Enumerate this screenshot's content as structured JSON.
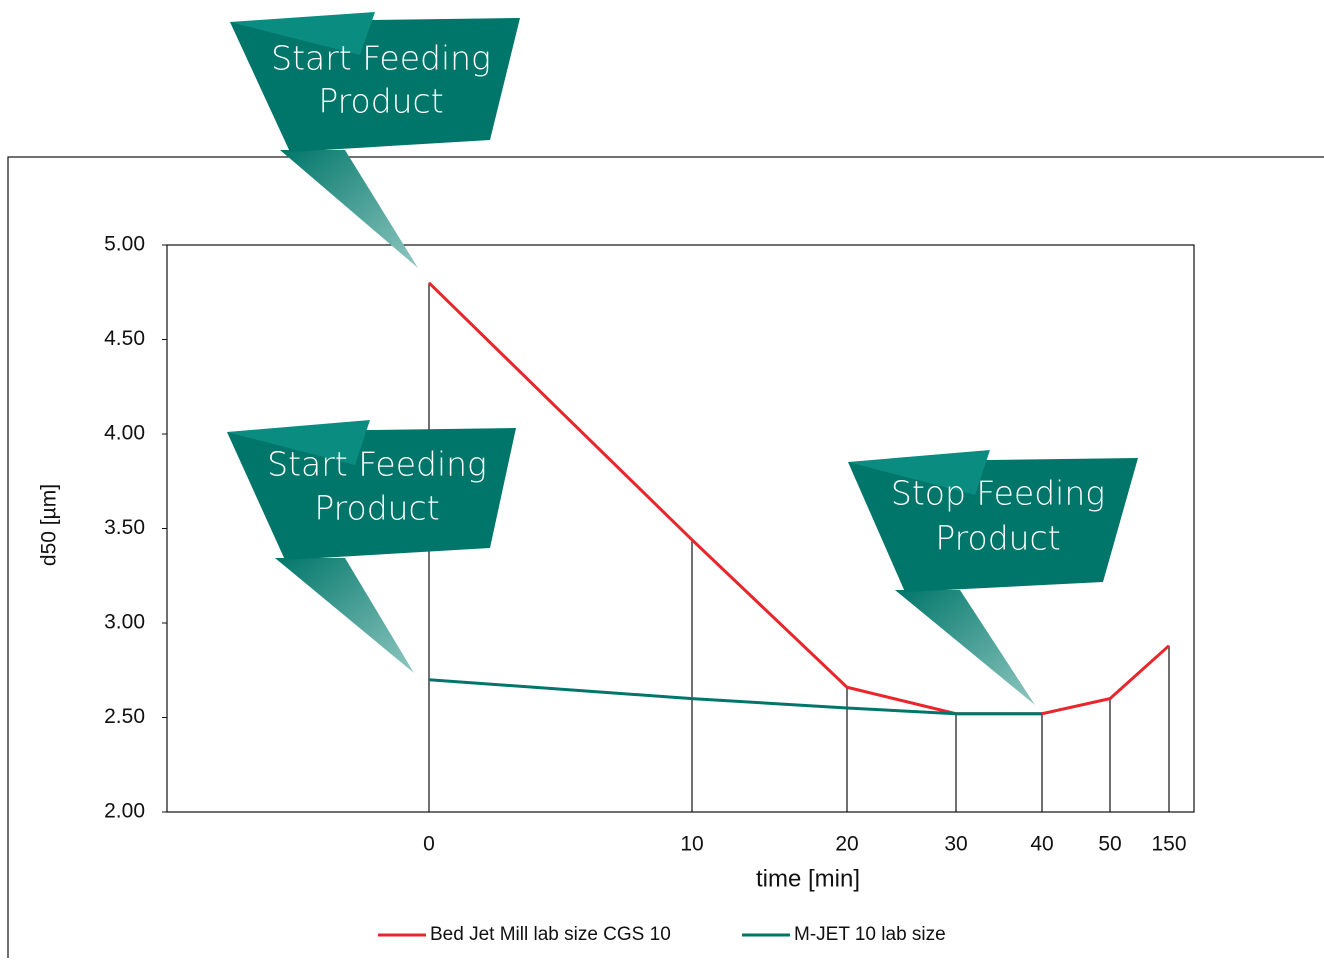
{
  "chart_data": {
    "type": "line",
    "xlabel": "time [min]",
    "ylabel": "d50 [µm]",
    "categories": [
      "0",
      "10",
      "20",
      "30",
      "40",
      "50",
      "150"
    ],
    "series": [
      {
        "name": "Bed Jet Mill lab size CGS 10",
        "color": "#e8262b",
        "values": [
          4.8,
          3.44,
          2.66,
          2.52,
          2.52,
          2.6,
          2.88
        ]
      },
      {
        "name": "M-JET 10 lab size",
        "color": "#00766a",
        "values": [
          2.7,
          2.6,
          2.55,
          2.52,
          2.52,
          null,
          null
        ]
      }
    ],
    "ylim": [
      2,
      5
    ],
    "yticks": [
      {
        "value": 2,
        "label": "2.00"
      },
      {
        "value": 2.5,
        "label": "2.50"
      },
      {
        "value": 3,
        "label": "3.00"
      },
      {
        "value": 3.5,
        "label": "3.50"
      },
      {
        "value": 4,
        "label": "4.00"
      },
      {
        "value": 4.5,
        "label": "4.50"
      },
      {
        "value": 5,
        "label": "5.00"
      }
    ],
    "legend": "bottom",
    "annotations": [
      {
        "lines": [
          "Start Feeding",
          "Product"
        ]
      },
      {
        "lines": [
          "Start Feeding",
          "Product"
        ]
      },
      {
        "lines": [
          "Stop Feeding",
          "Product"
        ]
      }
    ]
  }
}
